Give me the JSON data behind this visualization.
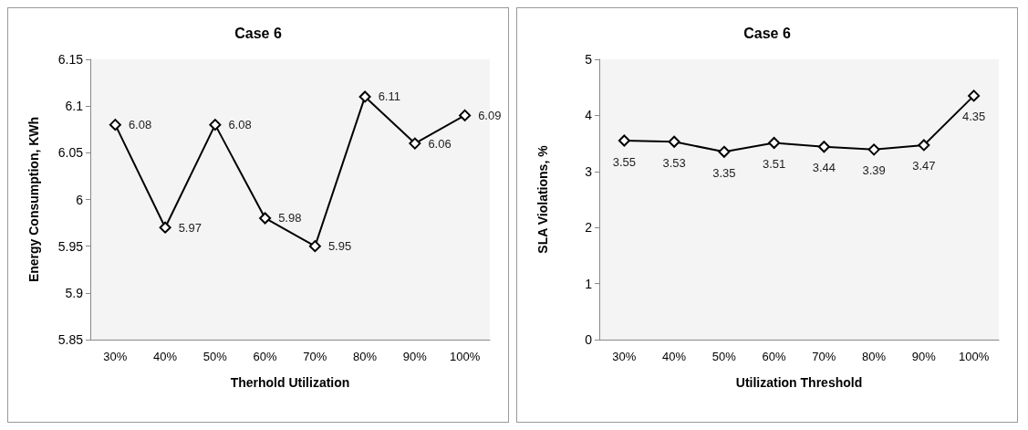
{
  "chart_data": [
    {
      "type": "line",
      "title": "Case 6",
      "xlabel": "Therhold Utilization",
      "ylabel": "Energy Consumption, KWh",
      "categories": [
        "30%",
        "40%",
        "50%",
        "60%",
        "70%",
        "80%",
        "90%",
        "100%"
      ],
      "series": [
        {
          "color": "#000000",
          "values": [
            6.08,
            5.97,
            6.08,
            5.98,
            5.95,
            6.11,
            6.06,
            6.09
          ]
        }
      ],
      "ylim": [
        5.85,
        6.15
      ],
      "yticks": [
        5.85,
        5.9,
        5.95,
        6,
        6.05,
        6.1,
        6.15
      ],
      "marker": "diamond",
      "line_style": "solid",
      "data_labels": true
    },
    {
      "type": "line",
      "title": "Case 6",
      "xlabel": "Utilization Threshold",
      "ylabel": "SLA Violations, %",
      "categories": [
        "30%",
        "40%",
        "50%",
        "60%",
        "70%",
        "80%",
        "90%",
        "100%"
      ],
      "series": [
        {
          "color": "#000000",
          "values": [
            3.55,
            3.53,
            3.35,
            3.51,
            3.44,
            3.39,
            3.47,
            4.35
          ]
        }
      ],
      "ylim": [
        0,
        5
      ],
      "yticks": [
        0,
        1,
        2,
        3,
        4,
        5
      ],
      "marker": "diamond",
      "line_style": "solid",
      "data_labels": true
    }
  ]
}
